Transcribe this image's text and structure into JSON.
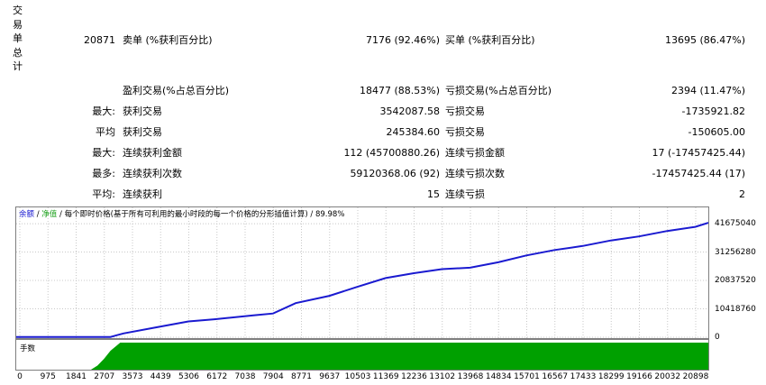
{
  "side_label": [
    "交",
    "易",
    "单",
    "总",
    "计"
  ],
  "summary": {
    "total_trades": "20871",
    "short_label": "卖单 (%获利百分比)",
    "short_value": "7176 (92.46%)",
    "long_label": "买单 (%获利百分比)",
    "long_value": "13695 (86.47%)"
  },
  "rows": [
    {
      "prefix": "",
      "left_label": "盈利交易(%占总百分比)",
      "left_value": "18477 (88.53%)",
      "right_label": "亏损交易(%占总百分比)",
      "right_value": "2394 (11.47%)"
    },
    {
      "prefix": "最大:",
      "left_label": "获利交易",
      "left_value": "3542087.58",
      "right_label": "亏损交易",
      "right_value": "-1735921.82"
    },
    {
      "prefix": "平均",
      "left_label": "获利交易",
      "left_value": "245384.60",
      "right_label": "亏损交易",
      "right_value": "-150605.00"
    },
    {
      "prefix": "最大:",
      "left_label": "连续获利金额",
      "left_value": "112 (45700880.26)",
      "right_label": "连续亏损金额",
      "right_value": "17 (-17457425.44)"
    },
    {
      "prefix": "最多:",
      "left_label": "连续获利次数",
      "left_value": "59120368.06 (92)",
      "right_label": "连续亏损次数",
      "right_value": "-17457425.44 (17)"
    },
    {
      "prefix": "平均:",
      "left_label": "连续获利",
      "left_value": "15",
      "right_label": "连续亏损",
      "right_value": "2"
    }
  ],
  "chart_legend": {
    "balance": "余额",
    "sep1": " / ",
    "equity": "净值",
    "desc": " / 每个即时价格(基于所有可利用的最小时段的每一个价格的分形插值计算) / 89.98%"
  },
  "volume_label": "手数",
  "colors": {
    "balance": "#1a1ad0",
    "equity": "#19a019",
    "volume": "#00a000"
  },
  "chart_data": {
    "type": "line",
    "series": [
      {
        "name": "余额",
        "x": [
          0,
          1600,
          2900,
          3300,
          4300,
          5300,
          6100,
          7300,
          7904,
          8600,
          9637,
          10503,
          11369,
          12236,
          13102,
          13968,
          14834,
          15701,
          16567,
          17433,
          18299,
          19166,
          20032,
          20898,
          21300
        ],
        "values": [
          100000,
          100000,
          100000,
          1400000,
          3600000,
          5800000,
          6600000,
          8000000,
          8700000,
          12500000,
          15200000,
          18500000,
          21700000,
          23500000,
          25000000,
          25500000,
          27500000,
          30000000,
          32000000,
          33500000,
          35500000,
          37000000,
          39000000,
          40500000,
          42000000
        ]
      }
    ],
    "volume": {
      "x": [
        0,
        2300,
        2500,
        2700,
        2900,
        3200,
        21300
      ],
      "values": [
        0,
        0,
        0.15,
        0.4,
        0.7,
        1,
        1
      ]
    },
    "yticks": [
      {
        "value": 41675040,
        "label": "41675040"
      },
      {
        "value": 31256280,
        "label": "31256280"
      },
      {
        "value": 20837520,
        "label": "20837520"
      },
      {
        "value": 10418760,
        "label": "10418760"
      },
      {
        "value": 0,
        "label": "0"
      }
    ],
    "xticks": [
      "0",
      "975",
      "1841",
      "2707",
      "3573",
      "4439",
      "5306",
      "6172",
      "7038",
      "7904",
      "8771",
      "9637",
      "10503",
      "11369",
      "12236",
      "13102",
      "13968",
      "14834",
      "15701",
      "16567",
      "17433",
      "18299",
      "19166",
      "20032",
      "20898"
    ],
    "xlim": [
      0,
      21300
    ],
    "ylim": [
      0,
      46000000
    ],
    "grid": true
  }
}
